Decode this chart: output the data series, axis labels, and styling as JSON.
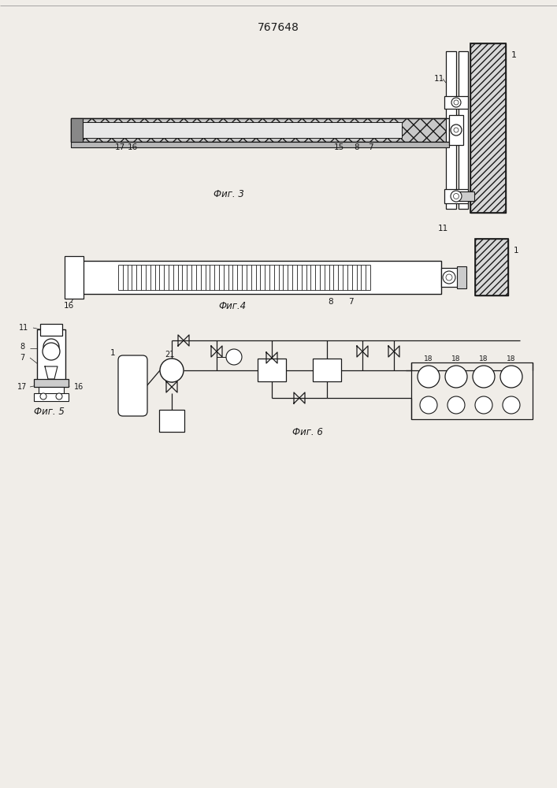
{
  "title": "767648",
  "fig3_label": "Фиг. 3",
  "fig4_label": "Фиг.4",
  "fig5_label": "Фиг. 5",
  "fig6_label": "Фиг. 6",
  "bg_color": "#f0ede8",
  "line_color": "#1a1a1a",
  "hatch_line_color": "#444444"
}
